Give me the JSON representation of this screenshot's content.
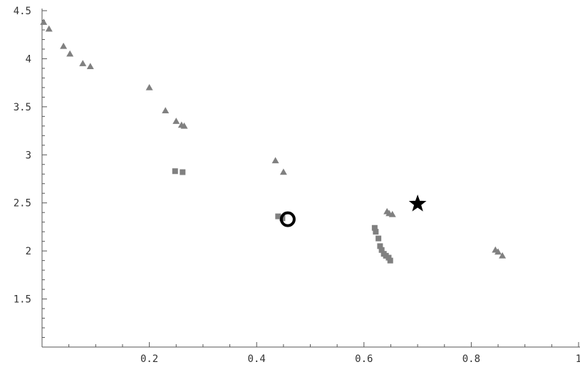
{
  "chart_data": {
    "type": "scatter",
    "title": "",
    "xlabel": "",
    "ylabel": "",
    "xlim": [
      0,
      1
    ],
    "ylim": [
      1,
      4.5
    ],
    "x_ticks": [
      {
        "value": 0.2,
        "label": "0.2"
      },
      {
        "value": 0.4,
        "label": "0.4"
      },
      {
        "value": 0.6,
        "label": "0.6"
      },
      {
        "value": 0.8,
        "label": "0.8"
      },
      {
        "value": 1.0,
        "label": "1"
      }
    ],
    "y_ticks": [
      {
        "value": 1.5,
        "label": "1.5"
      },
      {
        "value": 2.0,
        "label": "2"
      },
      {
        "value": 2.5,
        "label": "2.5"
      },
      {
        "value": 3.0,
        "label": "3"
      },
      {
        "value": 3.5,
        "label": "3.5"
      },
      {
        "value": 4.0,
        "label": "4"
      },
      {
        "value": 4.5,
        "label": "4.5"
      }
    ],
    "grid": false,
    "legend": "none",
    "series": [
      {
        "marker": "triangle",
        "color": "#808080",
        "points": [
          [
            0.003,
            4.38
          ],
          [
            0.013,
            4.31
          ],
          [
            0.04,
            4.13
          ],
          [
            0.052,
            4.05
          ],
          [
            0.076,
            3.95
          ],
          [
            0.09,
            3.92
          ],
          [
            0.2,
            3.7
          ],
          [
            0.23,
            3.46
          ],
          [
            0.25,
            3.35
          ],
          [
            0.26,
            3.31
          ],
          [
            0.265,
            3.3
          ],
          [
            0.435,
            2.94
          ],
          [
            0.45,
            2.82
          ],
          [
            0.643,
            2.41
          ],
          [
            0.647,
            2.39
          ],
          [
            0.653,
            2.38
          ],
          [
            0.845,
            2.01
          ],
          [
            0.85,
            1.99
          ],
          [
            0.858,
            1.95
          ]
        ]
      },
      {
        "marker": "square",
        "color": "#808080",
        "points": [
          [
            0.248,
            2.83
          ],
          [
            0.262,
            2.82
          ],
          [
            0.44,
            2.36
          ],
          [
            0.448,
            2.34
          ],
          [
            0.62,
            2.24
          ],
          [
            0.622,
            2.2
          ],
          [
            0.627,
            2.13
          ],
          [
            0.63,
            2.05
          ],
          [
            0.633,
            2.01
          ],
          [
            0.637,
            1.97
          ],
          [
            0.641,
            1.95
          ],
          [
            0.646,
            1.93
          ],
          [
            0.649,
            1.9
          ]
        ]
      },
      {
        "marker": "circle",
        "color": "#000000",
        "points": [
          [
            0.458,
            2.33
          ]
        ]
      },
      {
        "marker": "star",
        "color": "#000000",
        "points": [
          [
            0.7,
            2.49
          ]
        ]
      }
    ]
  }
}
